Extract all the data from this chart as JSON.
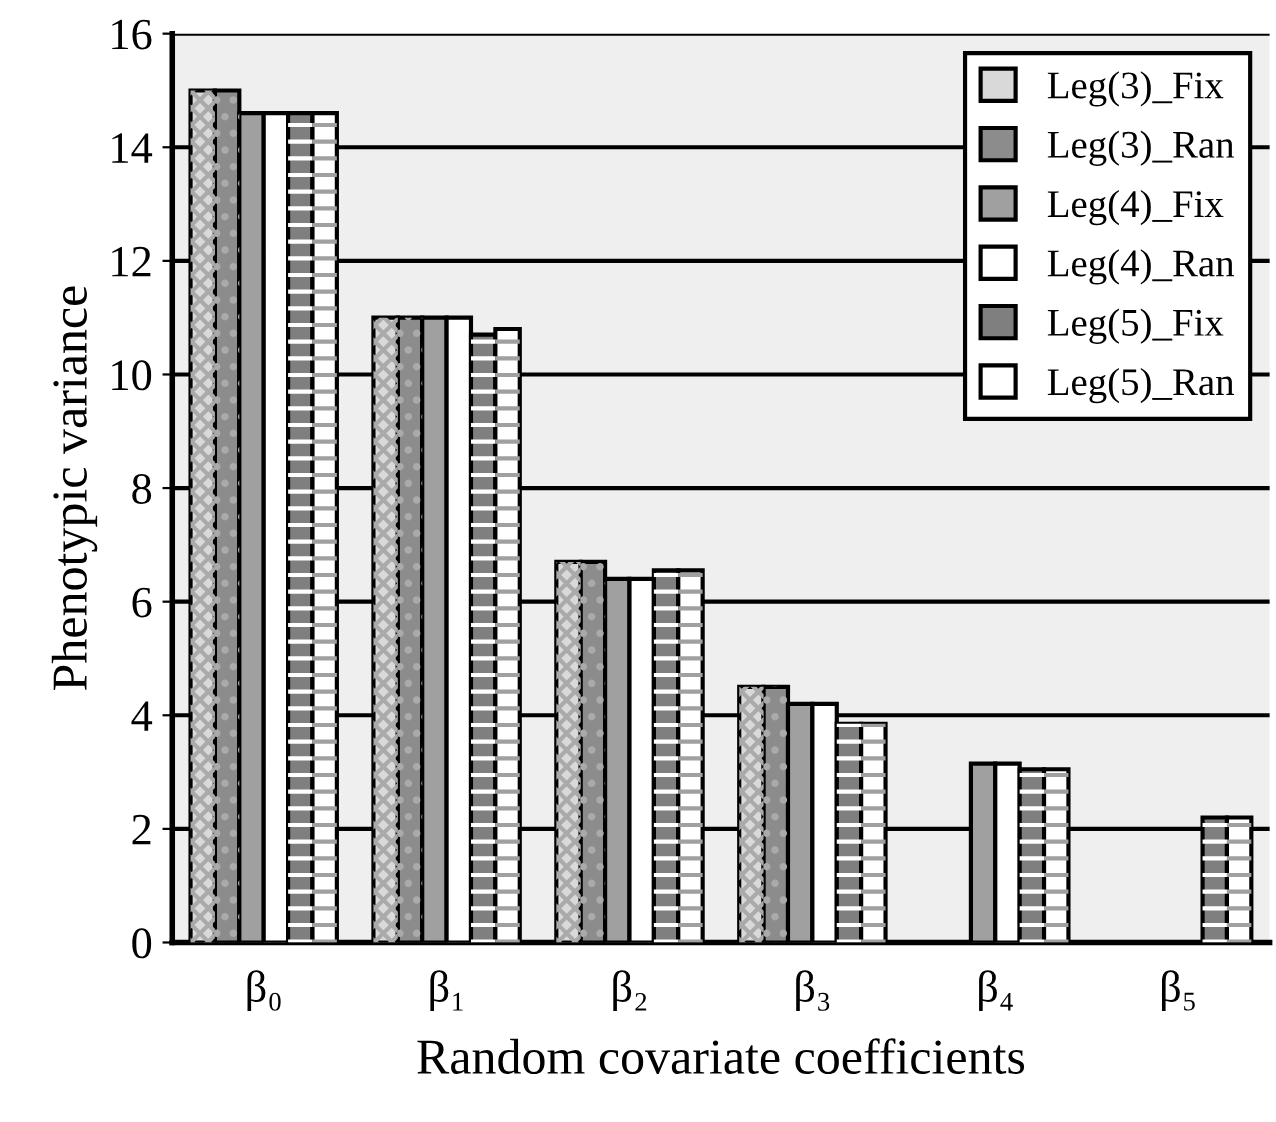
{
  "chart_data": {
    "type": "bar",
    "xlabel": "Random covariate coefficients",
    "ylabel": "Phenotypic variance",
    "categories": [
      "β₀",
      "β₁",
      "β₂",
      "β₃",
      "β₄",
      "β₅"
    ],
    "series": [
      {
        "name": "Leg(3)_Fix",
        "color": "#d9d9d9",
        "values": [
          15.0,
          11.0,
          6.7,
          4.5,
          null,
          null
        ]
      },
      {
        "name": "Leg(3)_Ran",
        "color": "#8c8c8c",
        "values": [
          15.0,
          11.0,
          6.7,
          4.5,
          null,
          null
        ]
      },
      {
        "name": "Leg(4)_Fix",
        "color": "#a0a0a0",
        "values": [
          14.6,
          11.0,
          6.4,
          4.2,
          3.15,
          null
        ]
      },
      {
        "name": "Leg(4)_Ran",
        "color": "#ffffff",
        "values": [
          14.6,
          11.0,
          6.4,
          4.2,
          3.15,
          null
        ]
      },
      {
        "name": "Leg(5)_Fix",
        "color": "#7f7f7f",
        "values": [
          14.6,
          10.7,
          6.55,
          3.85,
          3.05,
          2.2
        ]
      },
      {
        "name": "Leg(5)_Ran",
        "color": "#ffffff",
        "values": [
          14.6,
          10.8,
          6.55,
          3.85,
          3.05,
          2.2
        ]
      }
    ],
    "ylim": [
      0,
      16
    ],
    "yticks": [
      0,
      2,
      4,
      6,
      8,
      10,
      12,
      14,
      16
    ],
    "grid": "y",
    "legend": "top right"
  }
}
